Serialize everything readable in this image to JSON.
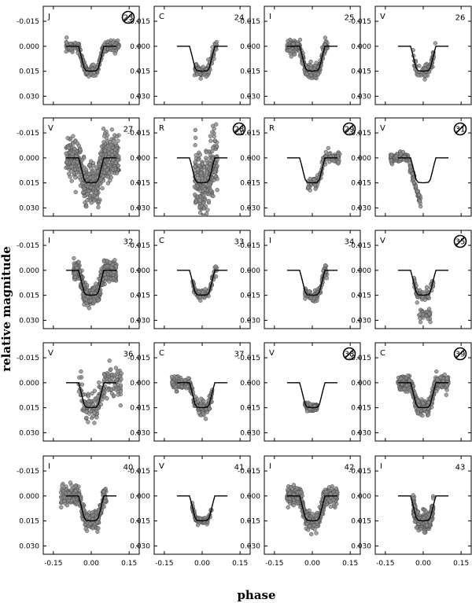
{
  "chart_data": {
    "type": "scatter",
    "xlabel": "phase",
    "ylabel": "relative magnitude",
    "xlim": [
      -0.19,
      0.19
    ],
    "ylim": [
      -0.024,
      0.035
    ],
    "y_inverted": true,
    "xticks": [
      -0.15,
      0.0,
      0.15
    ],
    "xtick_labels": [
      "-0.15",
      "0.00",
      "0.15"
    ],
    "yticks": [
      -0.015,
      0.0,
      0.015,
      0.03
    ],
    "ytick_labels": [
      "-0.015",
      "0.000",
      "0.015",
      "0.030"
    ],
    "grid": false,
    "model": {
      "phase": [
        -0.1,
        -0.05,
        -0.043,
        -0.035,
        -0.028,
        -0.02,
        0.0,
        0.02,
        0.028,
        0.035,
        0.043,
        0.05,
        0.1
      ],
      "magnitude": [
        0.0,
        0.0,
        0.004,
        0.009,
        0.013,
        0.0147,
        0.015,
        0.0147,
        0.013,
        0.009,
        0.004,
        0.0,
        0.0
      ]
    },
    "panels": [
      {
        "filter": "J",
        "number": "23",
        "crossed": true,
        "scatter": 0.0015,
        "xmin": -0.1,
        "xmax": 0.11,
        "n": 260
      },
      {
        "filter": "C",
        "number": "24",
        "crossed": false,
        "scatter": 0.002,
        "xmin": -0.03,
        "xmax": 0.06,
        "n": 80
      },
      {
        "filter": "I",
        "number": "25",
        "crossed": false,
        "scatter": 0.002,
        "xmin": -0.1,
        "xmax": 0.06,
        "n": 260
      },
      {
        "filter": "V",
        "number": "26",
        "crossed": false,
        "scatter": 0.002,
        "xmin": -0.04,
        "xmax": 0.05,
        "n": 70
      },
      {
        "filter": "V",
        "number": "27",
        "crossed": false,
        "scatter": 0.0065,
        "xmin": -0.1,
        "xmax": 0.11,
        "n": 520
      },
      {
        "filter": "R",
        "number": "28",
        "crossed": true,
        "scatter": 0.009,
        "xmin": -0.03,
        "xmax": 0.06,
        "n": 260
      },
      {
        "filter": "R",
        "number": "29",
        "crossed": true,
        "scatter": 0.002,
        "xmin": -0.02,
        "xmax": 0.11,
        "n": 90
      },
      {
        "filter": "V",
        "number": "31",
        "crossed": true,
        "scatter": 0.0015,
        "xmin": -0.13,
        "xmax": -0.01,
        "n": 150
      },
      {
        "filter": "I",
        "number": "32",
        "crossed": false,
        "scatter": 0.0028,
        "xmin": -0.07,
        "xmax": 0.1,
        "n": 520
      },
      {
        "filter": "C",
        "number": "33",
        "crossed": false,
        "scatter": 0.0015,
        "xmin": -0.04,
        "xmax": 0.06,
        "n": 80
      },
      {
        "filter": "I",
        "number": "34",
        "crossed": false,
        "scatter": 0.0018,
        "xmin": -0.03,
        "xmax": 0.06,
        "n": 90
      },
      {
        "filter": "V",
        "number": "35",
        "crossed": true,
        "scatter": 0.002,
        "xmin": -0.04,
        "xmax": 0.04,
        "n": 90
      },
      {
        "filter": "V",
        "number": "36",
        "crossed": false,
        "scatter": 0.005,
        "xmin": -0.05,
        "xmax": 0.12,
        "n": 170
      },
      {
        "filter": "C",
        "number": "37",
        "crossed": false,
        "scatter": 0.0018,
        "xmin": -0.12,
        "xmax": 0.04,
        "n": 220
      },
      {
        "filter": "V",
        "number": "38",
        "crossed": true,
        "scatter": 0.0012,
        "xmin": -0.03,
        "xmax": 0.02,
        "n": 80
      },
      {
        "filter": "C",
        "number": "39",
        "crossed": true,
        "scatter": 0.0022,
        "xmin": -0.1,
        "xmax": 0.1,
        "n": 360
      },
      {
        "filter": "I",
        "number": "40",
        "crossed": false,
        "scatter": 0.0028,
        "xmin": -0.12,
        "xmax": 0.06,
        "n": 320
      },
      {
        "filter": "V",
        "number": "41",
        "crossed": false,
        "scatter": 0.001,
        "xmin": -0.04,
        "xmax": 0.04,
        "n": 90
      },
      {
        "filter": "I",
        "number": "42",
        "crossed": false,
        "scatter": 0.0025,
        "xmin": -0.1,
        "xmax": 0.1,
        "n": 460
      },
      {
        "filter": "I",
        "number": "43",
        "crossed": false,
        "scatter": 0.0025,
        "xmin": -0.04,
        "xmax": 0.04,
        "n": 320
      }
    ]
  }
}
